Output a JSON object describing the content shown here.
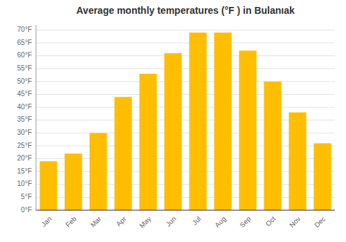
{
  "chart_data": {
    "type": "bar",
    "title": "Average monthly temperatures (°F ) in Bulanıak",
    "categories": [
      "Jan",
      "Feb",
      "Mar",
      "Apr",
      "May",
      "Jun",
      "Jul",
      "Aug",
      "Sep",
      "Oct",
      "Nov",
      "Dec"
    ],
    "values": [
      19,
      22,
      30,
      44,
      53,
      61,
      69,
      69,
      62,
      50,
      38,
      26
    ],
    "color": "#FFBE00",
    "ylim": [
      0,
      72
    ],
    "yticks": [
      {
        "value": 0,
        "label": "0°F"
      },
      {
        "value": 5,
        "label": "5°F"
      },
      {
        "value": 10,
        "label": "10°F"
      },
      {
        "value": 15,
        "label": "15°F"
      },
      {
        "value": 20,
        "label": "20°F"
      },
      {
        "value": 25,
        "label": "25°F"
      },
      {
        "value": 30,
        "label": "30°F"
      },
      {
        "value": 35,
        "label": "35°F"
      },
      {
        "value": 40,
        "label": "40°F"
      },
      {
        "value": 45,
        "label": "45°F"
      },
      {
        "value": 50,
        "label": "50°F"
      },
      {
        "value": 55,
        "label": "55°F"
      },
      {
        "value": 60,
        "label": "60°F"
      },
      {
        "value": 65,
        "label": "65°F"
      },
      {
        "value": 70,
        "label": "70°F"
      }
    ],
    "grid": true
  }
}
